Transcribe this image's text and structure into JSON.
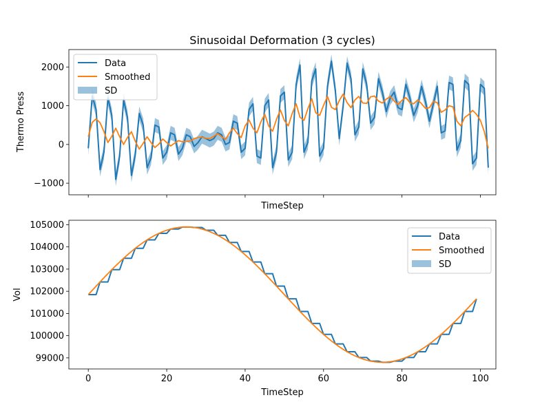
{
  "figure_title": "Sinusoidal Deformation (3 cycles)",
  "colors": {
    "data": "#1f77b4",
    "smoothed": "#ff7f0e",
    "sd": "#1f77b4"
  },
  "chart_data": [
    {
      "type": "line",
      "title": "Sinusoidal Deformation (3 cycles)",
      "xlabel": "TimeStep",
      "ylabel": "Thermo Press",
      "xlim": [
        -4.95,
        103.95
      ],
      "ylim": [
        -1300,
        2450
      ],
      "x_ticks": [
        0,
        20,
        40,
        60,
        80,
        100
      ],
      "x_tick_labels_visible": false,
      "y_ticks": [
        -1000,
        0,
        1000,
        2000
      ],
      "y_tick_labels": [
        "−1000",
        "0",
        "1000",
        "2000"
      ],
      "legend": {
        "position": "top-left",
        "entries": [
          "Data",
          "Smoothed",
          "SD"
        ]
      },
      "series": [
        {
          "name": "Data",
          "x_step": 1,
          "values": [
            -100,
            1250,
            900,
            -650,
            -200,
            1200,
            750,
            -900,
            -300,
            1150,
            700,
            -800,
            -250,
            800,
            500,
            -600,
            -350,
            500,
            450,
            -350,
            -200,
            300,
            250,
            -250,
            -100,
            250,
            200,
            -50,
            50,
            200,
            150,
            100,
            150,
            300,
            250,
            0,
            50,
            600,
            550,
            -200,
            -100,
            900,
            1050,
            -300,
            -350,
            1000,
            1150,
            -600,
            -200,
            1250,
            1350,
            -400,
            -200,
            1550,
            2050,
            -200,
            50,
            1650,
            1950,
            -300,
            -100,
            1500,
            2150,
            1400,
            150,
            1000,
            2100,
            1700,
            250,
            450,
            1950,
            1550,
            550,
            700,
            1700,
            1350,
            850,
            1200,
            1350,
            950,
            900,
            1550,
            1200,
            750,
            1000,
            1500,
            1100,
            600,
            1050,
            1500,
            300,
            350,
            1600,
            1550,
            -150,
            100,
            1650,
            1550,
            -500,
            -350,
            1550,
            1450,
            -600
          ]
        },
        {
          "name": "Smoothed",
          "x_step": 1,
          "values": [
            200,
            570,
            660,
            560,
            330,
            50,
            210,
            420,
            200,
            0,
            180,
            330,
            80,
            -120,
            30,
            200,
            50,
            -80,
            10,
            140,
            50,
            -40,
            30,
            100,
            70,
            80,
            90,
            150,
            180,
            190,
            160,
            150,
            210,
            280,
            200,
            130,
            300,
            420,
            280,
            180,
            480,
            630,
            420,
            300,
            580,
            780,
            480,
            340,
            650,
            890,
            620,
            480,
            800,
            1050,
            700,
            620,
            920,
            1180,
            820,
            750,
            1010,
            1240,
            960,
            900,
            1130,
            1300,
            1080,
            950,
            1150,
            1240,
            1070,
            1060,
            1230,
            1250,
            1120,
            1070,
            1170,
            1240,
            1120,
            1030,
            1140,
            1210,
            1080,
            1050,
            1150,
            1050,
            930,
            950,
            1110,
            1080,
            830,
            890,
            1000,
            970,
            600,
            480,
            700,
            770,
            880,
            780,
            620,
            330,
            -100
          ]
        },
        {
          "name": "SD",
          "kind": "band_around_data",
          "halfwidth": 180
        }
      ]
    },
    {
      "type": "line",
      "xlabel": "TimeStep",
      "ylabel": "Vol",
      "xlim": [
        -4.95,
        103.95
      ],
      "ylim": [
        98500,
        105200
      ],
      "x_ticks": [
        0,
        20,
        40,
        60,
        80,
        100
      ],
      "x_tick_labels": [
        "0",
        "20",
        "40",
        "60",
        "80",
        "100"
      ],
      "y_ticks": [
        99000,
        100000,
        101000,
        102000,
        103000,
        104000,
        105000
      ],
      "y_tick_labels": [
        "99000",
        "100000",
        "101000",
        "102000",
        "103000",
        "104000",
        "105000"
      ],
      "legend": {
        "position": "top-right",
        "entries": [
          "Data",
          "Smoothed",
          "SD"
        ]
      },
      "volume_model": {
        "mean": 101850,
        "amplitude": 3050,
        "period": 100,
        "hold_steps": 3
      },
      "series": [
        {
          "name": "Data",
          "kind": "stepped_sine"
        },
        {
          "name": "Smoothed",
          "kind": "smooth_sine"
        },
        {
          "name": "SD",
          "kind": "band_around_data",
          "halfwidth": 0
        }
      ]
    }
  ]
}
